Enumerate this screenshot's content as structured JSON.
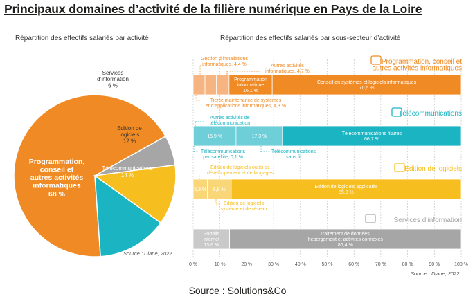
{
  "title": "Principaux domaines d’activité de la filière numérique en Pays de la Loire",
  "footer": {
    "label": "Source",
    "value": " : Solutions&Co"
  },
  "colors": {
    "programmation": "#F08A24",
    "programmation_light": "#F6B580",
    "telecom": "#1BB4C2",
    "telecom_light": "#6ECFD8",
    "edition": "#F6BE1E",
    "edition_light": "#F9D778",
    "services": "#A6A6A6",
    "services_light": "#C9C9C9"
  },
  "chart_data": [
    {
      "type": "pie",
      "title": "Répartition des effectifs salariés par activité",
      "source": "Source : Diane, 2022",
      "slices": [
        {
          "label": "Programmation, conseil et autres activités informatiques",
          "value": 68,
          "value_label": "68 %",
          "color": "#F08A24"
        },
        {
          "label": "Services d’information",
          "value": 6,
          "value_label": "6 %",
          "color": "#A6A6A6"
        },
        {
          "label": "Edition de logiciels",
          "value": 12,
          "value_label": "12 %",
          "color": "#F6BE1E"
        },
        {
          "label": "Télécommunications",
          "value": 14,
          "value_label": "14 %",
          "color": "#1BB4C2"
        }
      ]
    },
    {
      "type": "bar",
      "orientation": "horizontal-stacked",
      "title": "Répartition des effectifs salariés par sous-secteur d’activité",
      "source": "Source : Diane, 2022",
      "xlim": [
        0,
        100
      ],
      "x_ticks": [
        "0 %",
        "10 %",
        "20 %",
        "30 %",
        "40 %",
        "50 %",
        "60 %",
        "70 %",
        "80 %",
        "90 %",
        "100 %"
      ],
      "groups": [
        {
          "name": "Programmation, conseil et autres activités informatiques",
          "segments": [
            {
              "label": "Gestion d’installations informatiques, 4,4 %",
              "value": 4.4,
              "value_label": ""
            },
            {
              "label": "Tierce maintenance de systèmes et d’applications informatiques, 4,3 %",
              "value": 4.3,
              "value_label": ""
            },
            {
              "label": "Autres activités informatiques, 4,7 %",
              "value": 4.7,
              "value_label": ""
            },
            {
              "label": "Programmation informatique",
              "value": 16.1,
              "value_label": "16,1 %"
            },
            {
              "label": "Conseil en systèmes et logiciels informatiques",
              "value": 70.5,
              "value_label": "70,5 %"
            }
          ]
        },
        {
          "name": "Télécommunications",
          "segments": [
            {
              "label": "Télécommunications par satellite, 0,1 %",
              "value": 0.1,
              "value_label": ""
            },
            {
              "label": "Autres activités de télécommunication",
              "value": 15.9,
              "value_label": "15,9 %"
            },
            {
              "label": "Télécommunications sans fil",
              "value": 17.3,
              "value_label": "17,3 %"
            },
            {
              "label": "Télécommunications filaires",
              "value": 66.7,
              "value_label": "66,7 %"
            }
          ]
        },
        {
          "name": "Edition de logiciels",
          "segments": [
            {
              "label": "Edition de logiciels outils de développement et de langages",
              "value": 5.3,
              "value_label": "5,3 %"
            },
            {
              "label": "Edition de logiciels système et de réseau",
              "value": 8.9,
              "value_label": "8,9 %"
            },
            {
              "label": "Edition de logiciels applicatifs",
              "value": 85.8,
              "value_label": "85,8 %"
            }
          ]
        },
        {
          "name": "Services d’information",
          "segments": [
            {
              "label": "Portails internet",
              "value": 13.6,
              "value_label": "13,6 %"
            },
            {
              "label": "Traitement de données, hébergement et activités connexes",
              "value": 86.4,
              "value_label": "86,4 %"
            }
          ]
        }
      ]
    }
  ]
}
